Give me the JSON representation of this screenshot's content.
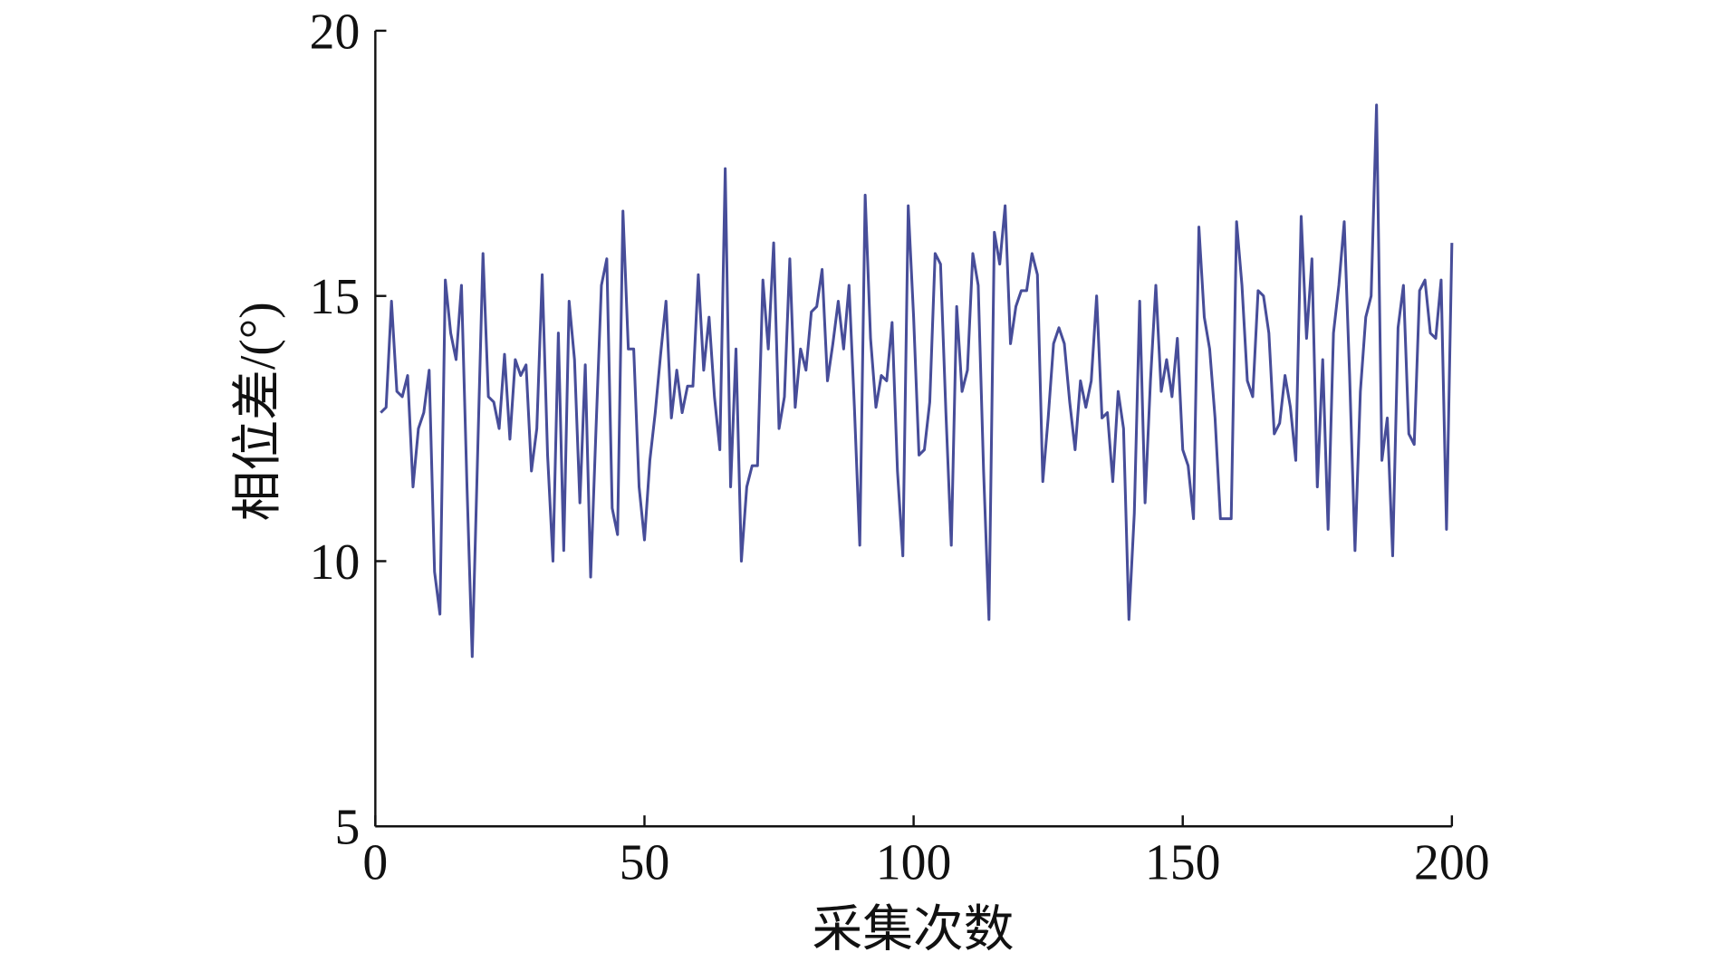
{
  "chart_data": {
    "type": "line",
    "xlabel": "采集次数",
    "ylabel": "相位差/(°)",
    "xlim": [
      0,
      200
    ],
    "ylim": [
      5,
      20
    ],
    "xticks": [
      0,
      50,
      100,
      150,
      200
    ],
    "yticks": [
      5,
      10,
      15,
      20
    ],
    "x": [
      1,
      2,
      3,
      4,
      5,
      6,
      7,
      8,
      9,
      10,
      11,
      12,
      13,
      14,
      15,
      16,
      17,
      18,
      19,
      20,
      21,
      22,
      23,
      24,
      25,
      26,
      27,
      28,
      29,
      30,
      31,
      32,
      33,
      34,
      35,
      36,
      37,
      38,
      39,
      40,
      41,
      42,
      43,
      44,
      45,
      46,
      47,
      48,
      49,
      50,
      51,
      52,
      53,
      54,
      55,
      56,
      57,
      58,
      59,
      60,
      61,
      62,
      63,
      64,
      65,
      66,
      67,
      68,
      69,
      70,
      71,
      72,
      73,
      74,
      75,
      76,
      77,
      78,
      79,
      80,
      81,
      82,
      83,
      84,
      85,
      86,
      87,
      88,
      89,
      90,
      91,
      92,
      93,
      94,
      95,
      96,
      97,
      98,
      99,
      100,
      101,
      102,
      103,
      104,
      105,
      106,
      107,
      108,
      109,
      110,
      111,
      112,
      113,
      114,
      115,
      116,
      117,
      118,
      119,
      120,
      121,
      122,
      123,
      124,
      125,
      126,
      127,
      128,
      129,
      130,
      131,
      132,
      133,
      134,
      135,
      136,
      137,
      138,
      139,
      140,
      141,
      142,
      143,
      144,
      145,
      146,
      147,
      148,
      149,
      150,
      151,
      152,
      153,
      154,
      155,
      156,
      157,
      158,
      159,
      160,
      161,
      162,
      163,
      164,
      165,
      166,
      167,
      168,
      169,
      170,
      171,
      172,
      173,
      174,
      175,
      176,
      177,
      178,
      179,
      180,
      181,
      182,
      183,
      184,
      185,
      186,
      187,
      188,
      189,
      190,
      191,
      192,
      193,
      194,
      195,
      196,
      197,
      198,
      199,
      200
    ],
    "series": [
      {
        "color": "#474d99",
        "values": [
          12.8,
          12.9,
          14.9,
          13.2,
          13.1,
          13.5,
          11.4,
          12.5,
          12.8,
          13.6,
          9.8,
          9.0,
          15.3,
          14.3,
          13.8,
          15.2,
          11.5,
          8.2,
          12.0,
          15.8,
          13.1,
          13.0,
          12.5,
          13.9,
          12.3,
          13.8,
          13.5,
          13.7,
          11.7,
          12.5,
          15.4,
          12.0,
          10.0,
          14.3,
          10.2,
          14.9,
          13.8,
          11.1,
          13.7,
          9.7,
          12.5,
          15.2,
          15.7,
          11.0,
          10.5,
          16.6,
          14.0,
          14.0,
          11.4,
          10.4,
          11.9,
          12.8,
          13.9,
          14.9,
          12.7,
          13.6,
          12.8,
          13.3,
          13.3,
          15.4,
          13.6,
          14.6,
          13.1,
          12.1,
          17.4,
          11.4,
          14.0,
          10.0,
          11.4,
          11.8,
          11.8,
          15.3,
          14.0,
          16.0,
          12.5,
          13.1,
          15.7,
          12.9,
          14.0,
          13.6,
          14.7,
          14.8,
          15.5,
          13.4,
          14.1,
          14.9,
          14.0,
          15.2,
          12.9,
          10.3,
          16.9,
          14.2,
          12.9,
          13.5,
          13.4,
          14.5,
          11.7,
          10.1,
          16.7,
          14.6,
          12.0,
          12.1,
          13.0,
          15.8,
          15.6,
          12.8,
          10.3,
          14.8,
          13.2,
          13.6,
          15.8,
          15.2,
          11.7,
          8.9,
          16.2,
          15.6,
          16.7,
          14.1,
          14.8,
          15.1,
          15.1,
          15.8,
          15.4,
          11.5,
          12.7,
          14.1,
          14.4,
          14.1,
          13.0,
          12.1,
          13.4,
          12.9,
          13.4,
          15.0,
          12.7,
          12.8,
          11.5,
          13.2,
          12.5,
          8.9,
          10.9,
          14.9,
          11.1,
          13.4,
          15.2,
          13.2,
          13.8,
          13.1,
          14.2,
          12.1,
          11.8,
          10.8,
          16.3,
          14.6,
          14.0,
          12.7,
          10.8,
          10.8,
          10.8,
          16.4,
          15.2,
          13.4,
          13.1,
          15.1,
          15.0,
          14.3,
          12.4,
          12.6,
          13.5,
          12.9,
          11.9,
          16.5,
          14.2,
          15.7,
          11.4,
          13.8,
          10.6,
          14.3,
          15.2,
          16.4,
          13.5,
          10.2,
          13.2,
          14.6,
          15.0,
          18.6,
          11.9,
          12.7,
          10.1,
          14.4,
          15.2,
          12.4,
          12.2,
          15.1,
          15.3,
          14.3,
          14.2,
          15.3,
          10.6,
          16.0
        ]
      }
    ]
  }
}
